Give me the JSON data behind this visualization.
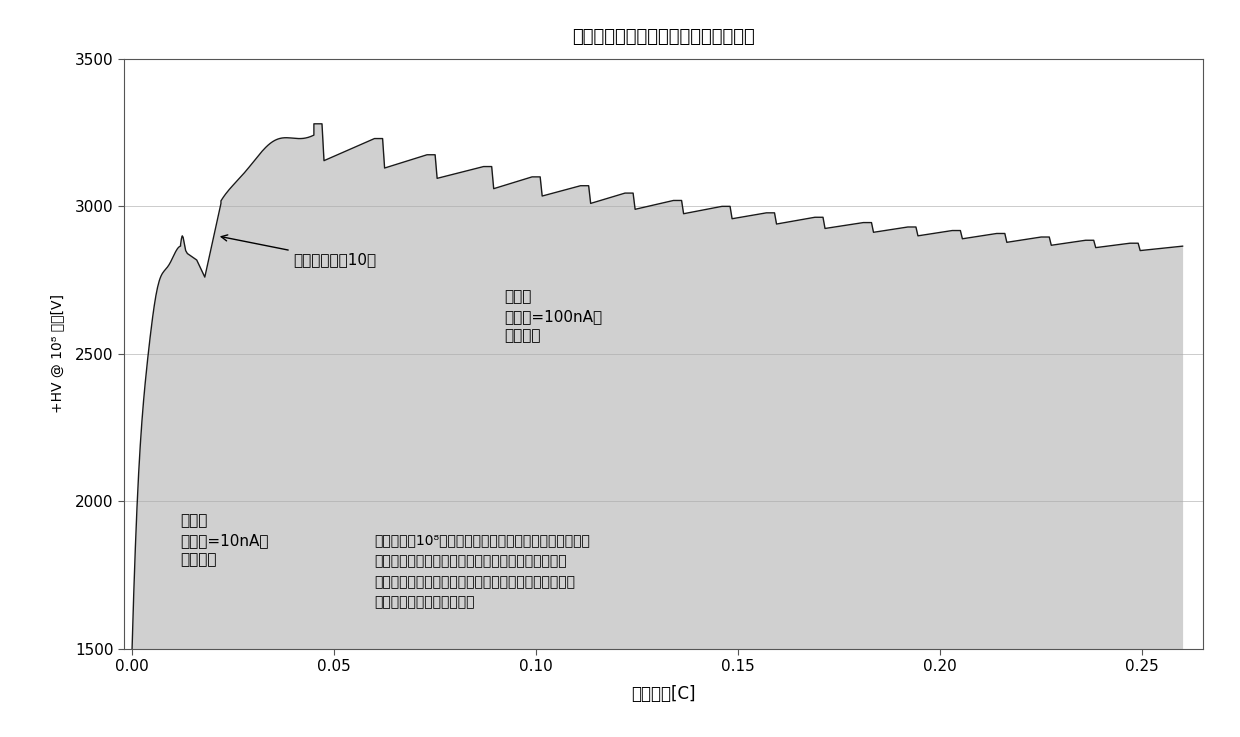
{
  "title": "初始增益衰减后的典型检测器增益恢复",
  "xlabel": "累积电荷[C]",
  "ylabel": "+HV @ 10⁸ 增益[V]",
  "xlim": [
    -0.002,
    0.265
  ],
  "ylim": [
    1500,
    3500
  ],
  "yticks": [
    1500,
    2000,
    2500,
    3000,
    3500
  ],
  "xticks": [
    0.0,
    0.05,
    0.1,
    0.15,
    0.2,
    0.25
  ],
  "annotation1_text": "低暴露\n（输出=10nA）\n增益衰减",
  "annotation2_text": "输入电流增加10倍",
  "annotation3_text": "高暴露\n（输出=100nA）\n增益恢复",
  "body_text": "曲线图显示10⁸增益所需电压随使用而变化。这是碳沉积\n到发射表面上的结果。在低暴露下的初始增益衰减之\n后，增益在高暴露下开始恢复。这是由于污染物变得耗\n尽，并且沉积的碳被腐蚀。",
  "line_color": "#1a1a1a",
  "fill_color": "#aaaaaa",
  "background_color": "#ffffff",
  "grid_color": "#cccccc"
}
